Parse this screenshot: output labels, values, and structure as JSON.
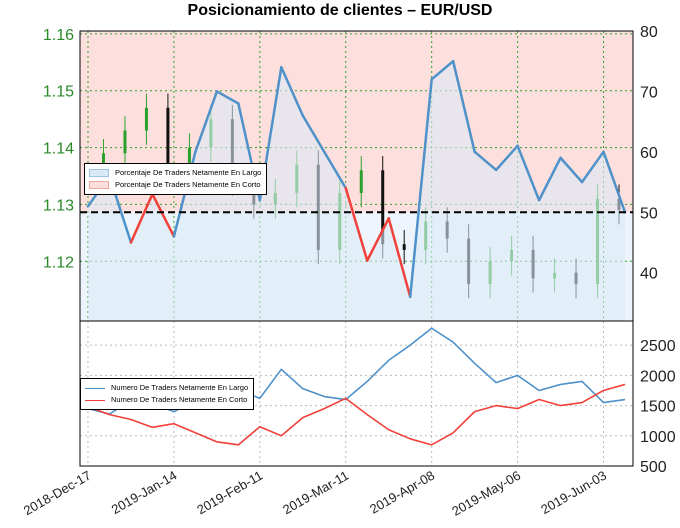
{
  "title": "Posicionamiento de clientes – EUR/USD",
  "colors": {
    "long": "#4f91c9",
    "short": "#f0413a",
    "long_fill": "#dbe9f7",
    "short_fill": "#fde0dd",
    "up_candle": "#2ca02c",
    "down_candle": "#111111",
    "left_axis_text": "#2a8a2a",
    "grid": "#2ca02c"
  },
  "x_axis": {
    "tick_labels": [
      "2018-Dec-17",
      "2019-Jan-14",
      "2019-Feb-11",
      "2019-Mar-11",
      "2019-Apr-08",
      "2019-May-06",
      "2019-Jun-03"
    ]
  },
  "legend_top": {
    "items": [
      {
        "label": "Porcentaje De Traders Netamente En Largo"
      },
      {
        "label": "Porcentaje De Traders Netamente En Corto"
      }
    ]
  },
  "legend_bottom": {
    "items": [
      {
        "label": "Numero De Traders Netamente En Largo"
      },
      {
        "label": "Numero De Traders Netamente En Corto"
      }
    ]
  },
  "chart_data": [
    {
      "type": "line",
      "panel": "price",
      "series_name": "EUR/USD",
      "x": [
        "2018-Dec-17",
        "2018-Dec-24",
        "2018-Dec-31",
        "2019-Jan-07",
        "2019-Jan-14",
        "2019-Jan-21",
        "2019-Jan-28",
        "2019-Feb-04",
        "2019-Feb-11",
        "2019-Feb-18",
        "2019-Feb-25",
        "2019-Mar-04",
        "2019-Mar-11",
        "2019-Mar-18",
        "2019-Mar-25",
        "2019-Apr-01",
        "2019-Apr-08",
        "2019-Apr-15",
        "2019-Apr-22",
        "2019-Apr-29",
        "2019-May-06",
        "2019-May-13",
        "2019-May-20",
        "2019-May-27",
        "2019-Jun-03",
        "2019-Jun-10"
      ],
      "close": [
        1.136,
        1.139,
        1.143,
        1.147,
        1.137,
        1.14,
        1.145,
        1.134,
        1.13,
        1.132,
        1.137,
        1.122,
        1.132,
        1.136,
        1.123,
        1.122,
        1.127,
        1.124,
        1.116,
        1.12,
        1.122,
        1.117,
        1.118,
        1.116,
        1.131,
        1.129
      ],
      "left_axis": {
        "ticks": [
          1.12,
          1.13,
          1.14,
          1.15,
          1.16
        ],
        "ylim": [
          1.1095,
          1.1605
        ]
      },
      "right_axis": {
        "ticks": [
          40,
          50,
          60,
          70,
          80
        ],
        "ylim": [
          32,
          80
        ]
      }
    },
    {
      "type": "line",
      "panel": "sentiment-percent",
      "dominant_series": "long",
      "y_range": [
        32,
        80
      ],
      "values": [
        51,
        56,
        45,
        53,
        46,
        60,
        70,
        68,
        52,
        74,
        66,
        60,
        54,
        42,
        49,
        36,
        72,
        75,
        60,
        57,
        61,
        52,
        59,
        55,
        60,
        50
      ]
    },
    {
      "type": "line",
      "panel": "trader-count",
      "y_ticks": [
        500,
        1000,
        1500,
        2000,
        2500
      ],
      "ylim": [
        500,
        2900
      ],
      "series": [
        {
          "name": "Numero De Traders Netamente En Largo",
          "values": [
            1450,
            1360,
            1590,
            1530,
            1400,
            1580,
            1820,
            1760,
            1620,
            2100,
            1780,
            1650,
            1600,
            1900,
            2250,
            2500,
            2780,
            2550,
            2200,
            1880,
            2000,
            1750,
            1850,
            1900,
            1550,
            1600
          ]
        },
        {
          "name": "Numero De Traders Netamente En Corto",
          "values": [
            1480,
            1350,
            1270,
            1140,
            1200,
            1050,
            900,
            850,
            1150,
            1000,
            1300,
            1450,
            1620,
            1350,
            1100,
            950,
            850,
            1050,
            1400,
            1500,
            1450,
            1600,
            1500,
            1550,
            1750,
            1850
          ]
        }
      ]
    }
  ]
}
